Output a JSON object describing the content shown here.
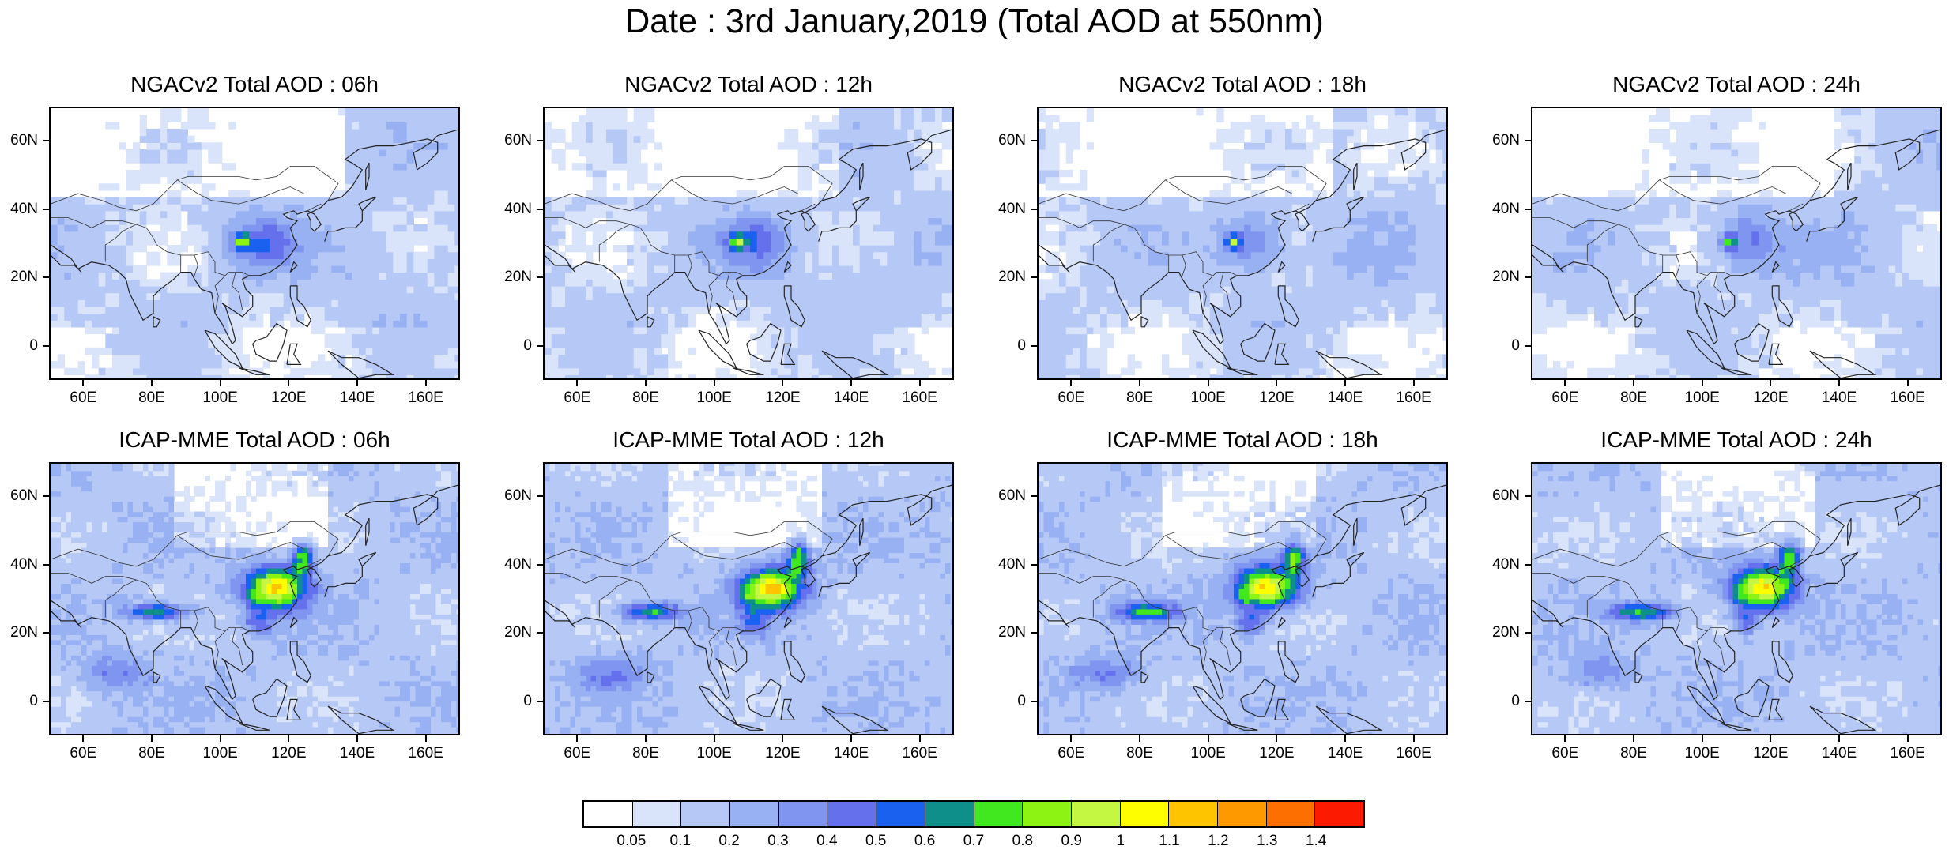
{
  "title": "Date : 3rd January,2019 (Total AOD at 550nm)",
  "panels": [
    {
      "title": "NGACv2 Total AOD : 06h",
      "model": "ngac"
    },
    {
      "title": "NGACv2 Total AOD : 12h",
      "model": "ngac"
    },
    {
      "title": "NGACv2 Total AOD : 18h",
      "model": "ngac"
    },
    {
      "title": "NGACv2 Total AOD : 24h",
      "model": "ngac"
    },
    {
      "title": "ICAP-MME Total AOD : 06h",
      "model": "icap"
    },
    {
      "title": "ICAP-MME Total AOD : 12h",
      "model": "icap"
    },
    {
      "title": "ICAP-MME Total AOD : 18h",
      "model": "icap"
    },
    {
      "title": "ICAP-MME Total AOD : 24h",
      "model": "icap"
    }
  ],
  "axes": {
    "lat_labels": [
      "60N",
      "40N",
      "20N",
      "0"
    ],
    "lat_values": [
      60,
      40,
      20,
      0
    ],
    "lon_labels": [
      "60E",
      "80E",
      "100E",
      "120E",
      "140E",
      "160E"
    ],
    "lon_values": [
      60,
      80,
      100,
      120,
      140,
      160
    ],
    "lon_range": [
      50,
      170
    ],
    "lat_range": [
      -10,
      70
    ]
  },
  "colorbar": {
    "labels": [
      "0.05",
      "0.1",
      "0.2",
      "0.3",
      "0.4",
      "0.5",
      "0.6",
      "0.7",
      "0.8",
      "0.9",
      "1",
      "1.1",
      "1.2",
      "1.3",
      "1.4"
    ],
    "colors": [
      "#ffffff",
      "#d9e4fb",
      "#b6c8f6",
      "#98b1f2",
      "#7f95ef",
      "#6570ec",
      "#1a61f0",
      "#0e8f8a",
      "#41e820",
      "#8cf312",
      "#c4f742",
      "#fffe00",
      "#fec400",
      "#fe9a00",
      "#fd6f00",
      "#fc1a00"
    ]
  }
}
